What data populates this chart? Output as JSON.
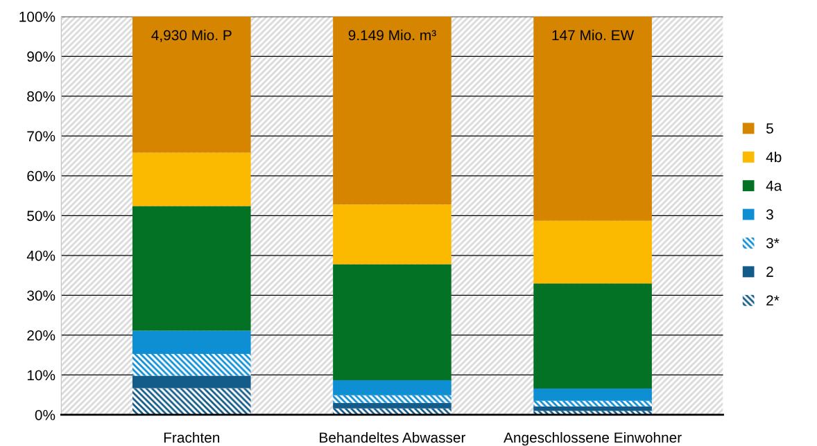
{
  "chart_data": {
    "type": "bar",
    "stacked": true,
    "categories": [
      "Frachten",
      "Behandeltes Abwasser",
      "Angeschlossene Einwohner"
    ],
    "series": [
      {
        "name": "2*",
        "color": "#135b88",
        "values": [
          6.7,
          1.6,
          1.0
        ]
      },
      {
        "name": "2",
        "color": "#135b88",
        "values": [
          3.1,
          1.4,
          1.1
        ]
      },
      {
        "name": "3*",
        "color": "#0f8fd3",
        "values": [
          5.5,
          1.9,
          1.4
        ]
      },
      {
        "name": "3",
        "color": "#0f8fd3",
        "values": [
          5.8,
          3.8,
          3.1
        ]
      },
      {
        "name": "4a",
        "color": "#047225",
        "values": [
          31.3,
          29.1,
          26.4
        ]
      },
      {
        "name": "4b",
        "color": "#fbb900",
        "values": [
          13.4,
          15.0,
          15.7
        ]
      },
      {
        "name": "5",
        "color": "#d58500",
        "values": [
          34.2,
          47.2,
          51.3
        ]
      }
    ],
    "ylim": [
      0,
      100
    ],
    "yticks": [
      {
        "value": 0,
        "label": "0%"
      },
      {
        "value": 10,
        "label": "10%"
      },
      {
        "value": 20,
        "label": "20%"
      },
      {
        "value": 30,
        "label": "30%"
      },
      {
        "value": 40,
        "label": "40%"
      },
      {
        "value": 50,
        "label": "50%"
      },
      {
        "value": 60,
        "label": "60%"
      },
      {
        "value": 70,
        "label": "70%"
      },
      {
        "value": 80,
        "label": "80%"
      },
      {
        "value": 90,
        "label": "90%"
      },
      {
        "value": 100,
        "label": "100%"
      }
    ],
    "grid": "y",
    "legend": "right",
    "annotations": [
      "4,930 Mio. P",
      "9.149 Mio. m³",
      "147 Mio. EW"
    ]
  }
}
